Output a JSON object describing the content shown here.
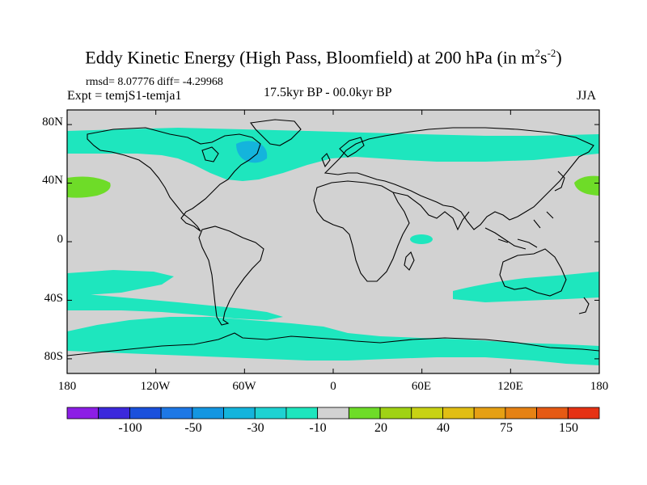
{
  "title": {
    "main": "Eddy Kinetic Energy (High Pass, Bloomfield) at 200 hPa (in m",
    "sup1": "2",
    "mid": "s",
    "sup2": "-2",
    "end": ")"
  },
  "stats": "rmsd= 8.07776 diff= -4.29968",
  "experiment": "Expt = temjS1-temja1",
  "period": "17.5kyr BP - 00.0kyr BP",
  "season": "JJA",
  "axes": {
    "lat_labels": [
      "80N",
      "40N",
      "0",
      "40S",
      "80S"
    ],
    "lon_labels": [
      "180",
      "120W",
      "60W",
      "0",
      "60E",
      "120E",
      "180"
    ]
  },
  "colorbar": {
    "colors": [
      "#8c1ee6",
      "#3c28dc",
      "#1a50dc",
      "#1e78e6",
      "#1496e1",
      "#14b4dc",
      "#1ed2d2",
      "#1ee6be",
      "#d2d2d2",
      "#6edc28",
      "#a0d214",
      "#c8d214",
      "#e1be14",
      "#e6a014",
      "#e68214",
      "#e65a14",
      "#e63214"
    ],
    "labels": [
      "-100",
      "-50",
      "-30",
      "-10",
      "20",
      "40",
      "75",
      "150"
    ]
  },
  "map_colors": {
    "background": "#d2d2d2",
    "teal": "#1ee6be",
    "cyan": "#14b4dc",
    "green": "#6edc28"
  }
}
